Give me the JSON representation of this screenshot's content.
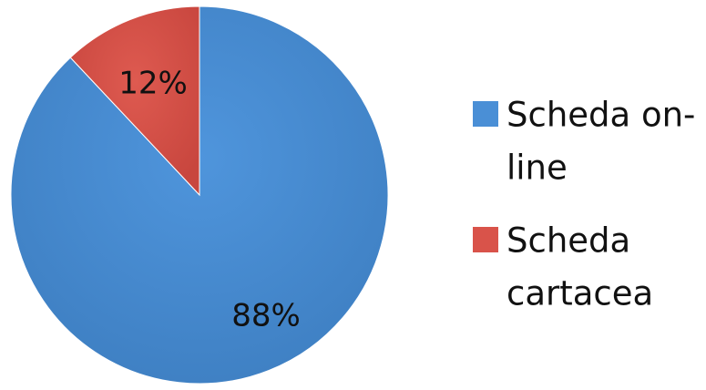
{
  "chart_data": {
    "type": "pie",
    "categories": [
      "Scheda on-line",
      "Scheda cartacea"
    ],
    "values": [
      88,
      12
    ],
    "labels": [
      "88%",
      "12%"
    ],
    "colors": [
      "#4a8fd6",
      "#d9534a"
    ],
    "start_angle": "12 o'clock",
    "direction": "clockwise",
    "legend_position": "right",
    "legend": [
      {
        "lines": [
          "Scheda on-",
          "line"
        ]
      },
      {
        "lines": [
          "Scheda",
          "cartacea"
        ]
      }
    ]
  }
}
